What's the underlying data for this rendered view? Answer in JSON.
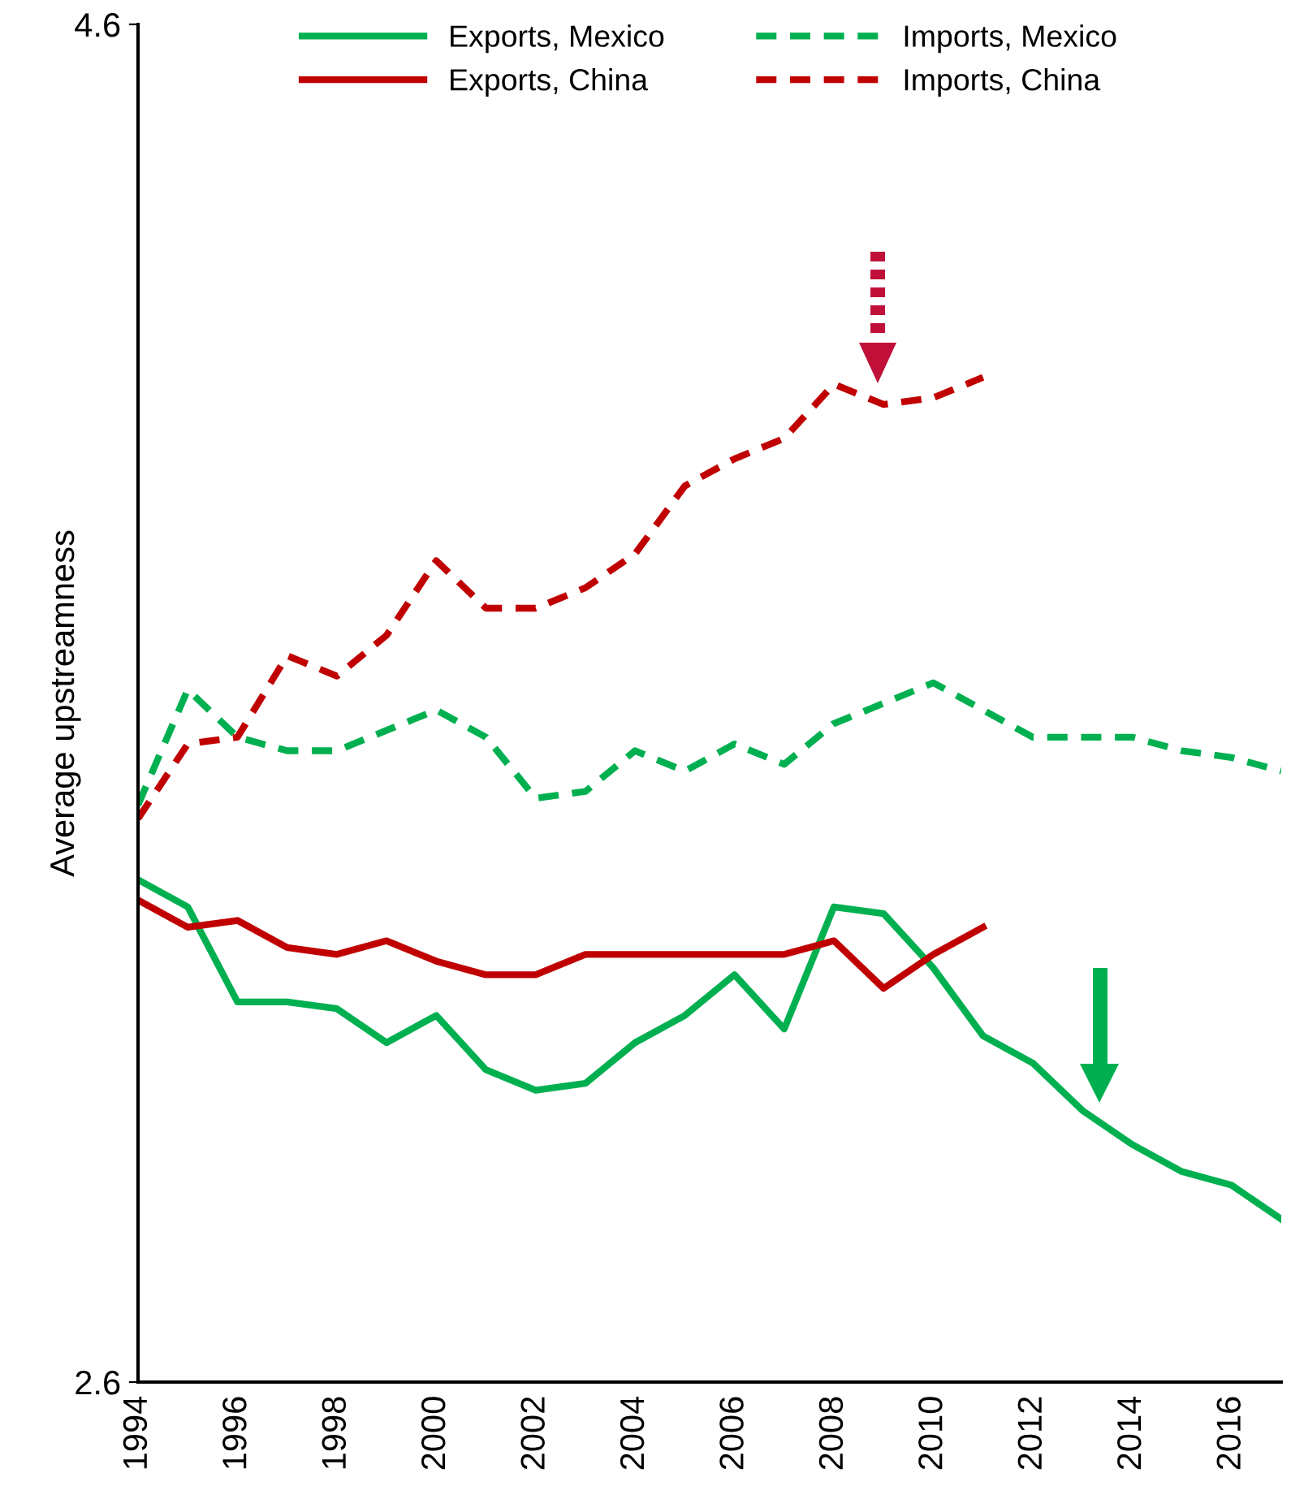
{
  "chart_data": {
    "type": "line",
    "ylabel": "Average upstreamness",
    "x": [
      1994,
      1995,
      1996,
      1997,
      1998,
      1999,
      2000,
      2001,
      2002,
      2003,
      2004,
      2005,
      2006,
      2007,
      2008,
      2009,
      2010,
      2011,
      2012,
      2013,
      2014,
      2015,
      2016,
      2017
    ],
    "xlim": [
      1994,
      2017
    ],
    "xticks": [
      1994,
      1996,
      1998,
      2000,
      2002,
      2004,
      2006,
      2008,
      2010,
      2012,
      2014,
      2016
    ],
    "ylim": [
      2.6,
      4.6
    ],
    "yticks": [
      2.6,
      4.6
    ],
    "grid": false,
    "legend": "top",
    "marker": "none",
    "series": [
      {
        "name": "Exports, Mexico",
        "color": "#00b050",
        "line_style": "solid",
        "values": [
          3.34,
          3.3,
          3.16,
          3.16,
          3.15,
          3.1,
          3.14,
          3.06,
          3.03,
          3.04,
          3.1,
          3.14,
          3.2,
          3.12,
          3.3,
          3.29,
          3.21,
          3.11,
          3.07,
          3.0,
          2.95,
          2.91,
          2.89,
          2.84
        ]
      },
      {
        "name": "Exports, China",
        "color": "#c00000",
        "line_style": "solid",
        "values": [
          3.31,
          3.27,
          3.28,
          3.24,
          3.23,
          3.25,
          3.22,
          3.2,
          3.2,
          3.23,
          3.23,
          3.23,
          3.23,
          3.23,
          3.25,
          3.18,
          3.23,
          3.27,
          null,
          null,
          null,
          null,
          null,
          null
        ]
      },
      {
        "name": "Imports, Mexico",
        "color": "#00b050",
        "line_style": "dashed",
        "values": [
          3.45,
          3.62,
          3.55,
          3.53,
          3.53,
          3.56,
          3.59,
          3.55,
          3.46,
          3.47,
          3.53,
          3.5,
          3.54,
          3.51,
          3.57,
          3.6,
          3.63,
          3.59,
          3.55,
          3.55,
          3.55,
          3.53,
          3.52,
          3.5
        ]
      },
      {
        "name": "Imports, China",
        "color": "#c00000",
        "line_style": "dashed",
        "values": [
          3.43,
          3.54,
          3.55,
          3.67,
          3.64,
          3.7,
          3.81,
          3.74,
          3.74,
          3.77,
          3.82,
          3.92,
          3.96,
          3.99,
          4.07,
          4.04,
          4.05,
          4.08,
          null,
          null,
          null,
          null,
          null,
          null
        ]
      }
    ]
  }
}
